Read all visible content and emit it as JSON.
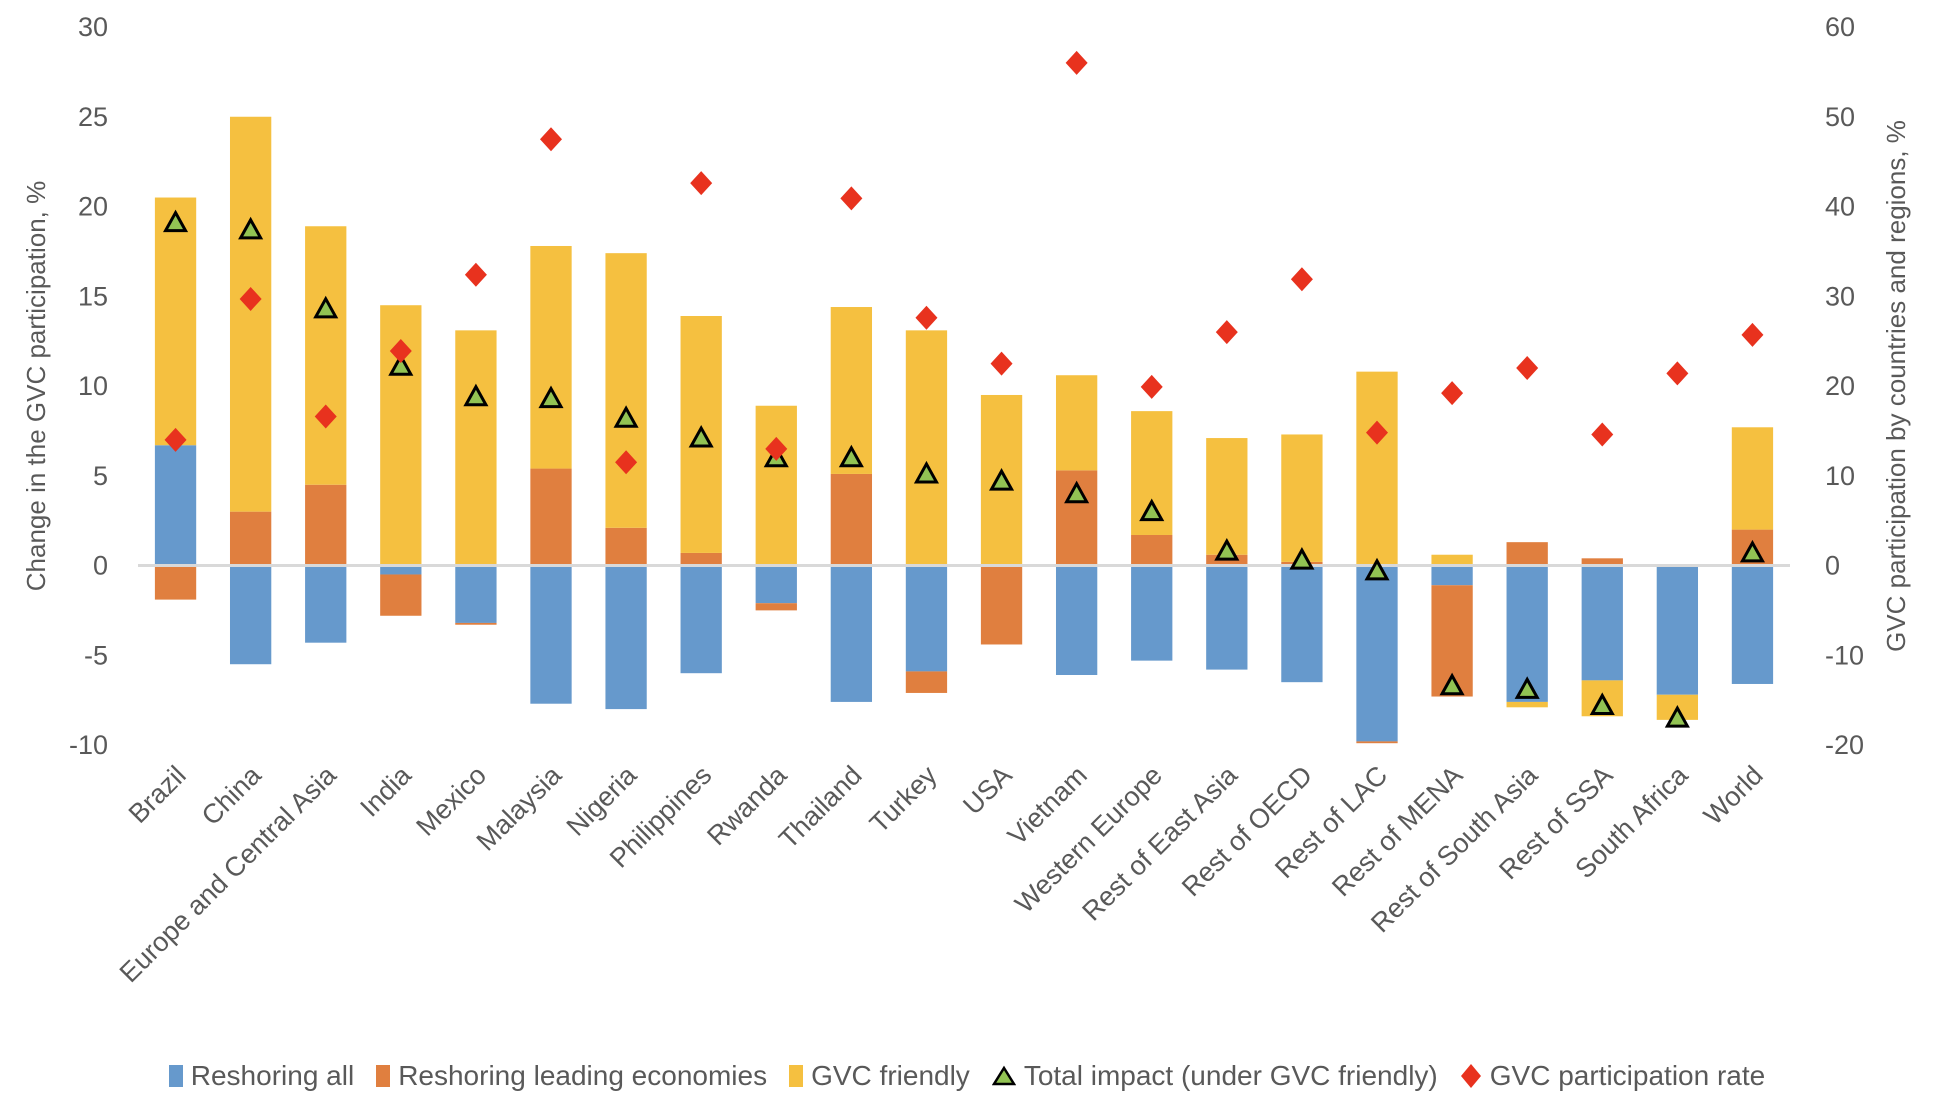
{
  "chart_data": {
    "type": "bar",
    "subtype": "stacked-bar-with-markers",
    "title": "",
    "ylabel": "Change in the GVC participation, %",
    "y2label": "GVC participation by countries and regions, %",
    "ylim": [
      -10,
      30
    ],
    "y2lim": [
      -20,
      60
    ],
    "yticks": [
      "30",
      "25",
      "20",
      "15",
      "10",
      "5",
      "0",
      "-5",
      "-10"
    ],
    "y2ticks": [
      "60",
      "50",
      "40",
      "30",
      "20",
      "10",
      "0",
      "-10",
      "-20"
    ],
    "ytick_values": [
      30,
      25,
      20,
      15,
      10,
      5,
      0,
      -5,
      -10
    ],
    "y2tick_values": [
      60,
      50,
      40,
      30,
      20,
      10,
      0,
      -10,
      -20
    ],
    "grid": false,
    "legend_position": "bottom",
    "categories": [
      "Brazil",
      "China",
      "Europe and Central Asia",
      "India",
      "Mexico",
      "Malaysia",
      "Nigeria",
      "Philippines",
      "Rwanda",
      "Thailand",
      "Turkey",
      "USA",
      "Vietnam",
      "Western Europe",
      "Rest of East Asia",
      "Rest of OECD",
      "Rest of LAC",
      "Rest of MENA",
      "Rest of South Asia",
      "Rest of SSA",
      "South Africa",
      "World"
    ],
    "series": [
      {
        "name": "Reshoring all",
        "type": "bar",
        "axis": "left",
        "color": "#6699CC",
        "values": [
          6.7,
          -5.5,
          -4.3,
          -0.5,
          -3.2,
          -7.7,
          -8.0,
          -6.0,
          -2.1,
          -7.6,
          -5.9,
          0.0,
          -6.1,
          -5.3,
          -5.8,
          -6.5,
          -9.8,
          -1.1,
          -7.6,
          -6.4,
          -7.2,
          -6.6
        ]
      },
      {
        "name": "Reshoring leading economies",
        "type": "bar",
        "axis": "left",
        "color": "#E07F3F",
        "values": [
          -1.9,
          3.0,
          4.5,
          -2.3,
          -0.1,
          5.4,
          2.1,
          0.7,
          -0.4,
          5.1,
          -1.2,
          -4.4,
          5.3,
          1.7,
          0.6,
          0.2,
          -0.1,
          -6.2,
          1.3,
          0.4,
          0.0,
          2.0
        ]
      },
      {
        "name": "GVC friendly",
        "type": "bar",
        "axis": "left",
        "color": "#F5C040",
        "values": [
          13.8,
          22.0,
          14.4,
          14.5,
          13.1,
          12.4,
          15.3,
          13.2,
          8.9,
          9.3,
          13.1,
          9.5,
          5.3,
          6.9,
          6.5,
          7.1,
          10.8,
          0.6,
          -0.3,
          -2.0,
          -1.4,
          5.7
        ]
      },
      {
        "name": "Total impact (under GVC friendly)",
        "type": "scatter",
        "marker": "triangle",
        "axis": "left",
        "color": "#92C353",
        "values": [
          19.1,
          18.7,
          14.3,
          11.1,
          9.4,
          9.3,
          8.2,
          7.1,
          6.0,
          6.0,
          5.1,
          4.7,
          4.0,
          3.0,
          0.8,
          0.3,
          -0.3,
          -6.7,
          -6.9,
          -7.8,
          -8.5,
          0.7
        ]
      },
      {
        "name": "GVC participation rate",
        "type": "scatter",
        "marker": "diamond",
        "axis": "right",
        "color": "#E8321E",
        "values": [
          14.0,
          29.7,
          16.6,
          23.9,
          32.4,
          47.5,
          11.5,
          42.6,
          13.0,
          40.9,
          27.6,
          22.5,
          56.0,
          19.9,
          26.0,
          31.9,
          14.8,
          19.2,
          22.0,
          14.6,
          21.4,
          25.7
        ]
      }
    ]
  },
  "legend": {
    "items": [
      {
        "label": "Reshoring all",
        "color": "#6699CC",
        "marker": "square"
      },
      {
        "label": "Reshoring leading economies",
        "color": "#E07F3F",
        "marker": "square"
      },
      {
        "label": "GVC friendly",
        "color": "#F5C040",
        "marker": "square"
      },
      {
        "label": "Total impact (under GVC friendly)",
        "color": "#92C353",
        "marker": "triangle"
      },
      {
        "label": "GVC participation rate",
        "color": "#E8321E",
        "marker": "diamond"
      }
    ]
  }
}
